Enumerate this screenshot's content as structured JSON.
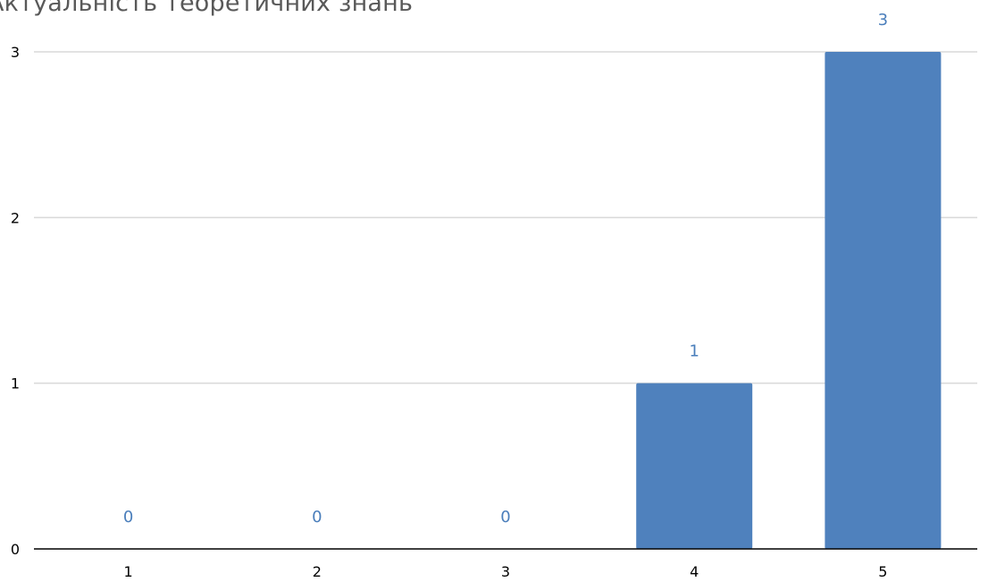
{
  "chart_data": {
    "type": "bar",
    "title": "Актуальність теоретичних знань",
    "categories": [
      "1",
      "2",
      "3",
      "4",
      "5"
    ],
    "values": [
      0,
      0,
      0,
      1,
      3
    ],
    "data_labels": [
      "0",
      "0",
      "0",
      "1",
      "3"
    ],
    "yticks": [
      "0",
      "1",
      "2",
      "3"
    ],
    "xlabel": "",
    "ylabel": "",
    "ylim": [
      0,
      3
    ],
    "grid": true,
    "legend": "none",
    "colors": {
      "bar": "#4f81bd",
      "data_label": "#4a7ebb",
      "gridline": "#d9d9d9",
      "axis": "#000000",
      "title": "#595959"
    }
  }
}
